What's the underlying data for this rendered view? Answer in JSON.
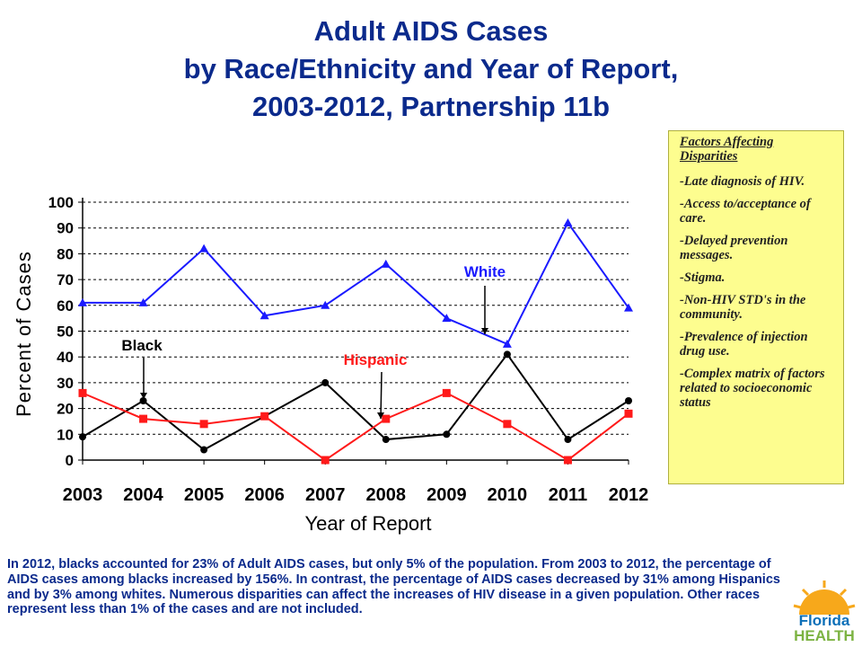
{
  "title": {
    "line1": "Adult AIDS Cases",
    "line2": "by Race/Ethnicity and Year of Report,",
    "line3": "2003-2012, Partnership 11b"
  },
  "factors": {
    "heading": "Factors Affecting Disparities",
    "items": [
      "-Late diagnosis of HIV.",
      "-Access to/acceptance of care.",
      "-Delayed prevention messages.",
      "-Stigma.",
      "-Non-HIV STD's in the community.",
      "-Prevalence of injection drug use.",
      "-Complex matrix of factors related to socioeconomic status"
    ]
  },
  "bottom_text": "In 2012, blacks accounted for 23% of Adult AIDS cases, but only 5% of the population. From 2003 to 2012, the percentage of AIDS cases among blacks increased by 156%.  In contrast, the percentage of AIDS cases decreased by 31% among Hispanics and by 3% among whites. Numerous disparities can affect the increases of HIV disease in a given population.  Other races represent less than 1% of the cases and are not included.",
  "logo": {
    "line1": "Florida",
    "line2": "HEALTH"
  },
  "colors": {
    "white": "#1a1aff",
    "black": "#000000",
    "hispanic": "#ff1a1a",
    "title": "#0b2a8c"
  },
  "chart_data": {
    "type": "line",
    "xlabel": "Year of Report",
    "ylabel": "Percent of Cases",
    "ylim": [
      0,
      100
    ],
    "yticks": [
      "0",
      "10",
      "20",
      "30",
      "40",
      "50",
      "60",
      "70",
      "80",
      "90",
      "100"
    ],
    "grid": true,
    "x": [
      "2003",
      "2004",
      "2005",
      "2006",
      "2007",
      "2008",
      "2009",
      "2010",
      "2011",
      "2012"
    ],
    "series": [
      {
        "name": "White",
        "color": "#1a1aff",
        "marker": "triangle",
        "values": [
          61,
          61,
          82,
          56,
          60,
          76,
          55,
          45,
          92,
          59
        ]
      },
      {
        "name": "Black",
        "color": "#000000",
        "marker": "circle",
        "values": [
          9,
          23,
          4,
          17,
          30,
          8,
          10,
          41,
          8,
          23
        ]
      },
      {
        "name": "Hispanic",
        "color": "#ff1a1a",
        "marker": "square",
        "values": [
          26,
          16,
          14,
          17,
          0,
          16,
          26,
          14,
          0,
          18
        ]
      }
    ]
  }
}
